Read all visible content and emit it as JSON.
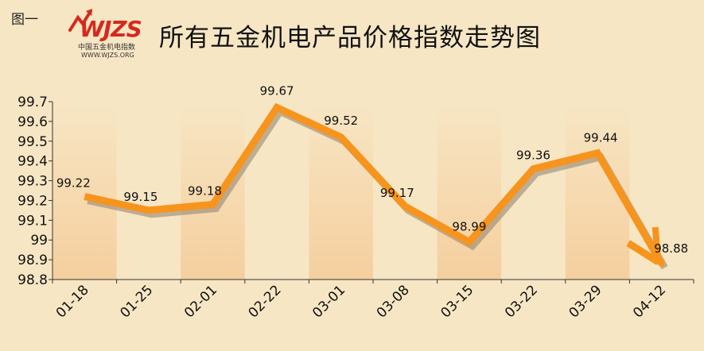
{
  "figure_label": "图一",
  "logo": {
    "mark": "WJZS",
    "subtitle": "中国五金机电指数",
    "url": "WWW.WJZS.ORG"
  },
  "colors": {
    "background": "#f7e6c4",
    "band": "#f6d7ad",
    "line": "#f7941d",
    "shadow": "#8a7f70",
    "logo_red": "#d42a1e"
  },
  "chart_data": {
    "type": "line",
    "title": "所有五金机电产品价格指数走势图",
    "categories": [
      "01-18",
      "01-25",
      "02-01",
      "02-22",
      "03-01",
      "03-08",
      "03-15",
      "03-22",
      "03-29",
      "04-12"
    ],
    "values": [
      99.22,
      99.15,
      99.18,
      99.67,
      99.52,
      99.17,
      98.99,
      99.36,
      99.44,
      98.88
    ],
    "data_labels": [
      "99.22",
      "99.15",
      "99.18",
      "99.67",
      "99.52",
      "99.17",
      "98.99",
      "99.36",
      "99.44",
      "98.88"
    ],
    "y_ticks": [
      "99.7",
      "99.6",
      "99.5",
      "99.4",
      "99.3",
      "99.2",
      "99.1",
      "99",
      "98.9",
      "98.8"
    ],
    "ylim": [
      98.8,
      99.7
    ],
    "xlabel": "",
    "ylabel": "",
    "grid": false,
    "legend": "none"
  }
}
